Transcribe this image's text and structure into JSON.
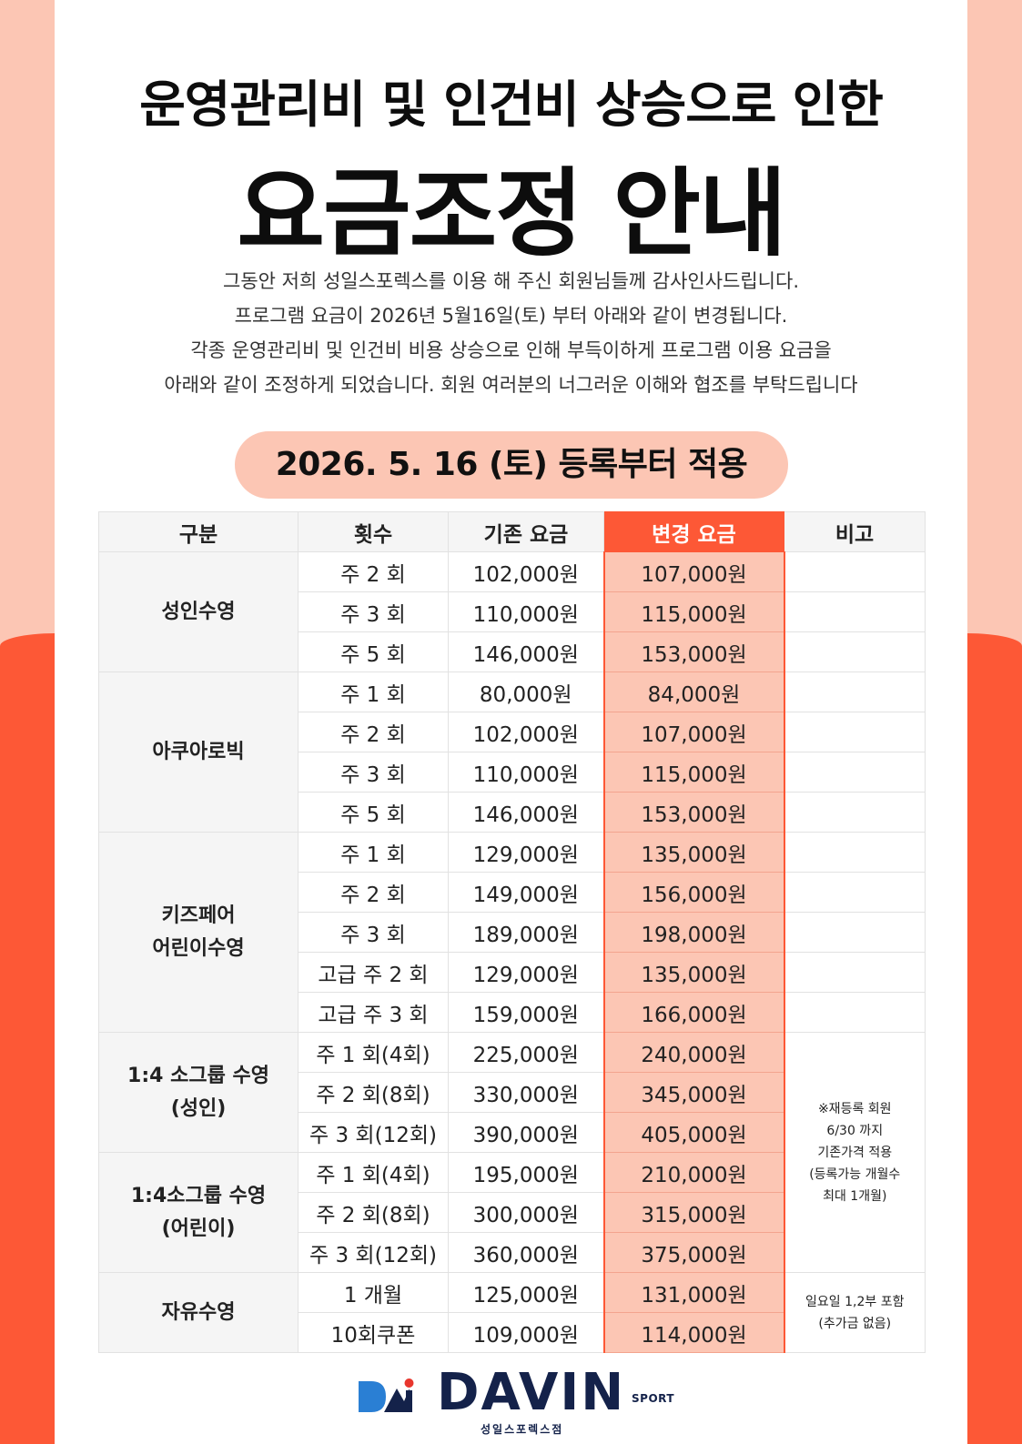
{
  "header": {
    "subtitle": "운영관리비 및 인건비 상승으로 인한",
    "title": "요금조정 안내"
  },
  "intro": [
    "그동안 저희 성일스포렉스를 이용 해 주신 회원님들께 감사인사드립니다.",
    "프로그램 요금이 2026년 5월16일(토) 부터 아래와 같이 변경됩니다.",
    "각종 운영관리비 및 인건비 비용 상승으로 인해 부득이하게 프로그램 이용 요금을",
    "아래와 같이 조정하게 되었습니다.  회원 여러분의 너그러운 이해와 협조를 부탁드립니다"
  ],
  "effective_date": "2026. 5. 16 (토) 등록부터 적용",
  "table": {
    "headers": [
      "구분",
      "횟수",
      "기존 요금",
      "변경 요금",
      "비고"
    ],
    "groups": [
      {
        "category": "성인수영",
        "rows": [
          {
            "freq": "주 2 회",
            "old": "102,000원",
            "new": "107,000원"
          },
          {
            "freq": "주 3 회",
            "old": "110,000원",
            "new": "115,000원"
          },
          {
            "freq": "주 5 회",
            "old": "146,000원",
            "new": "153,000원"
          }
        ]
      },
      {
        "category": "아쿠아로빅",
        "rows": [
          {
            "freq": "주 1 회",
            "old": "80,000원",
            "new": "84,000원"
          },
          {
            "freq": "주 2 회",
            "old": "102,000원",
            "new": "107,000원"
          },
          {
            "freq": "주 3 회",
            "old": "110,000원",
            "new": "115,000원"
          },
          {
            "freq": "주 5 회",
            "old": "146,000원",
            "new": "153,000원"
          }
        ]
      },
      {
        "category": "키즈페어\n어린이수영",
        "rows": [
          {
            "freq": "주 1 회",
            "old": "129,000원",
            "new": "135,000원"
          },
          {
            "freq": "주 2 회",
            "old": "149,000원",
            "new": "156,000원"
          },
          {
            "freq": "주 3 회",
            "old": "189,000원",
            "new": "198,000원"
          },
          {
            "freq": "고급 주 2 회",
            "old": "129,000원",
            "new": "135,000원"
          },
          {
            "freq": "고급 주 3 회",
            "old": "159,000원",
            "new": "166,000원"
          }
        ]
      },
      {
        "category": "1:4 소그룹 수영\n(성인)",
        "rows": [
          {
            "freq": "주 1 회(4회)",
            "old": "225,000원",
            "new": "240,000원"
          },
          {
            "freq": "주 2 회(8회)",
            "old": "330,000원",
            "new": "345,000원"
          },
          {
            "freq": "주 3 회(12회)",
            "old": "390,000원",
            "new": "405,000원"
          }
        ]
      },
      {
        "category": "1:4소그룹 수영\n(어린이)",
        "rows": [
          {
            "freq": "주 1 회(4회)",
            "old": "195,000원",
            "new": "210,000원"
          },
          {
            "freq": "주 2 회(8회)",
            "old": "300,000원",
            "new": "315,000원"
          },
          {
            "freq": "주 3 회(12회)",
            "old": "360,000원",
            "new": "375,000원"
          }
        ]
      },
      {
        "category": "자유수영",
        "rows": [
          {
            "freq": "1 개월",
            "old": "125,000원",
            "new": "131,000원"
          },
          {
            "freq": "10회쿠폰",
            "old": "109,000원",
            "new": "114,000원"
          }
        ]
      }
    ],
    "notes": {
      "small_group": "※재등록 회원\n6/30 까지\n기존가격 적용\n(등록가능 개월수\n최대 1개월)",
      "free_swim": "일요일 1,2부 포함\n(추가금 없음)"
    }
  },
  "logo": {
    "wordmark": "DAVIN",
    "sport": "SPORT",
    "branch": "성일스포렉스점"
  },
  "colors": {
    "accent": "#fd5836",
    "accent_light": "#fcc6b4",
    "header_bg": "#f5f5f5",
    "navy": "#14224a"
  }
}
